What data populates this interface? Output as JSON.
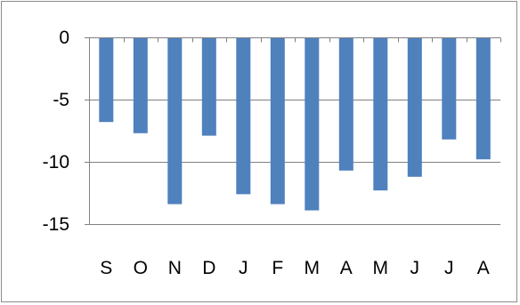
{
  "chart_data": {
    "type": "bar",
    "categories": [
      "S",
      "O",
      "N",
      "D",
      "J",
      "F",
      "M",
      "A",
      "M",
      "J",
      "J",
      "A"
    ],
    "values": [
      -6.8,
      -7.7,
      -13.4,
      -7.9,
      -12.6,
      -13.4,
      -13.9,
      -10.7,
      -12.3,
      -11.2,
      -8.2,
      -9.8
    ],
    "y_ticks": [
      "0",
      "-5",
      "-10",
      "-15"
    ],
    "y_tick_values": [
      0,
      -5,
      -10,
      -15
    ],
    "ylim": [
      -15,
      0
    ],
    "bar_color": "#4f81bd",
    "axis_color": "#808080",
    "grid": true,
    "legend": "none",
    "title": "",
    "xlabel": "",
    "ylabel": ""
  }
}
